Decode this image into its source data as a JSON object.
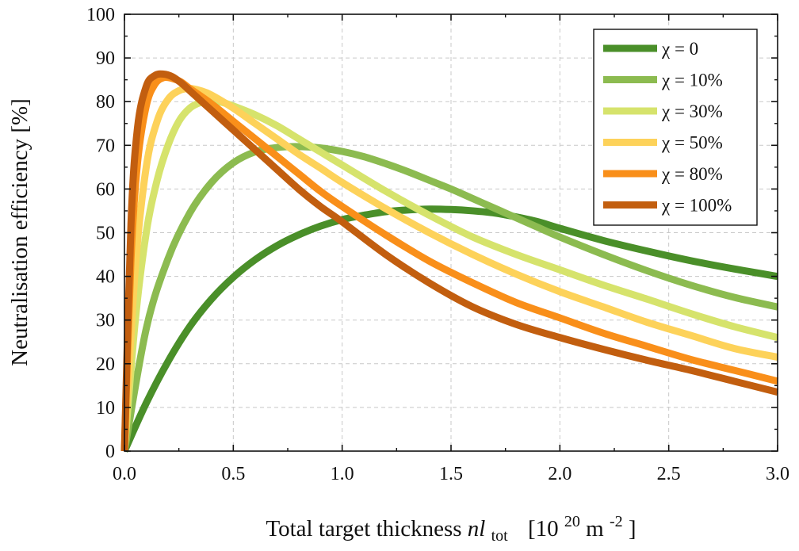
{
  "chart_data": {
    "type": "line",
    "title": "",
    "xlabel": {
      "main": "Total target thickness ",
      "var": "nl",
      "var_sub": "tot",
      "unit_open": "[10",
      "unit_exp": "20",
      "unit_mid": " m",
      "unit_exp2": "-2",
      "unit_close": "]"
    },
    "ylabel": "Neutralisation efficiency [%]",
    "xlim": [
      0,
      3.0
    ],
    "ylim": [
      0,
      100
    ],
    "xticks": [
      "0.0",
      "0.5",
      "1.0",
      "1.5",
      "2.0",
      "2.5",
      "3.0"
    ],
    "yticks": [
      "0",
      "10",
      "20",
      "30",
      "40",
      "50",
      "60",
      "70",
      "80",
      "90",
      "100"
    ],
    "grid": true,
    "legend_position": "top-right",
    "series": [
      {
        "name": "χ = 0",
        "color": "#4a8f29",
        "x": [
          0,
          0.1,
          0.2,
          0.3,
          0.4,
          0.5,
          0.6,
          0.7,
          0.8,
          0.9,
          1.0,
          1.1,
          1.2,
          1.3,
          1.4,
          1.5,
          1.6,
          1.7,
          1.8,
          1.9,
          2.0,
          2.2,
          2.4,
          2.6,
          2.8,
          3.0
        ],
        "y": [
          0,
          11,
          20.5,
          28.5,
          34.8,
          39.8,
          43.8,
          47.0,
          49.5,
          51.5,
          53.0,
          54.0,
          54.8,
          55.2,
          55.4,
          55.3,
          55.0,
          54.5,
          53.6,
          52.5,
          51.0,
          48.2,
          45.8,
          43.6,
          41.7,
          40.0
        ]
      },
      {
        "name": "χ = 10%",
        "color": "#8cbb50",
        "x": [
          0,
          0.1,
          0.2,
          0.3,
          0.4,
          0.5,
          0.6,
          0.7,
          0.8,
          0.9,
          1.0,
          1.1,
          1.2,
          1.3,
          1.4,
          1.5,
          1.6,
          1.7,
          1.8,
          1.9,
          2.0,
          2.2,
          2.4,
          2.6,
          2.8,
          3.0
        ],
        "y": [
          0,
          28,
          44,
          54.5,
          61.5,
          66,
          68.5,
          69.5,
          69.7,
          69.4,
          68.6,
          67.4,
          65.8,
          64.0,
          62.0,
          60.0,
          57.8,
          55.6,
          53.4,
          51.2,
          49.0,
          45.0,
          41.3,
          38.0,
          35.2,
          33.0
        ]
      },
      {
        "name": "χ = 30%",
        "color": "#d6e36c",
        "x": [
          0,
          0.05,
          0.1,
          0.15,
          0.2,
          0.25,
          0.3,
          0.35,
          0.4,
          0.45,
          0.5,
          0.6,
          0.7,
          0.8,
          0.9,
          1.0,
          1.2,
          1.4,
          1.6,
          1.8,
          2.0,
          2.2,
          2.4,
          2.6,
          2.8,
          3.0
        ],
        "y": [
          0,
          30,
          50,
          62,
          70,
          75.5,
          78.5,
          79.8,
          80.2,
          79.8,
          79,
          77,
          74.5,
          71.5,
          68.5,
          65.5,
          59.5,
          54,
          49,
          45,
          41.5,
          38,
          34.8,
          31.5,
          28.5,
          26.0
        ]
      },
      {
        "name": "χ = 50%",
        "color": "#fdd25a",
        "x": [
          0,
          0.05,
          0.1,
          0.15,
          0.2,
          0.25,
          0.3,
          0.35,
          0.4,
          0.5,
          0.6,
          0.7,
          0.8,
          0.9,
          1.0,
          1.2,
          1.4,
          1.6,
          1.8,
          2.0,
          2.2,
          2.4,
          2.6,
          2.8,
          3.0
        ],
        "y": [
          0,
          42,
          65,
          75.5,
          80.5,
          82.5,
          83,
          82.5,
          81.5,
          78.5,
          75,
          71.5,
          68,
          64.8,
          61.5,
          55.5,
          50,
          45,
          40.5,
          36.5,
          33,
          29.5,
          26.5,
          23.5,
          21.5
        ]
      },
      {
        "name": "χ = 80%",
        "color": "#f98f1a",
        "x": [
          0,
          0.03,
          0.06,
          0.1,
          0.14,
          0.18,
          0.22,
          0.26,
          0.3,
          0.4,
          0.5,
          0.6,
          0.7,
          0.8,
          0.9,
          1.0,
          1.2,
          1.4,
          1.6,
          1.8,
          2.0,
          2.2,
          2.4,
          2.6,
          2.8,
          3.0
        ],
        "y": [
          0,
          44,
          66,
          79,
          84,
          85.5,
          85.3,
          84.5,
          83,
          79.5,
          75.5,
          71.5,
          67.5,
          63.5,
          59.5,
          56,
          49.5,
          43.5,
          38.5,
          34,
          30.5,
          27,
          24,
          21,
          18.5,
          16.0
        ]
      },
      {
        "name": "χ = 100%",
        "color": "#c25e0f",
        "x": [
          0,
          0.03,
          0.06,
          0.1,
          0.14,
          0.18,
          0.22,
          0.26,
          0.3,
          0.4,
          0.5,
          0.6,
          0.7,
          0.8,
          0.9,
          1.0,
          1.2,
          1.4,
          1.6,
          1.8,
          2.0,
          2.2,
          2.4,
          2.6,
          2.8,
          3.0
        ],
        "y": [
          0,
          52,
          74,
          83.5,
          86,
          86.3,
          85.7,
          84.3,
          82.5,
          78,
          73.5,
          69,
          64.5,
          60,
          56,
          52.5,
          45,
          38.5,
          33,
          29,
          26,
          23.3,
          20.8,
          18.5,
          16,
          13.5
        ]
      }
    ]
  }
}
